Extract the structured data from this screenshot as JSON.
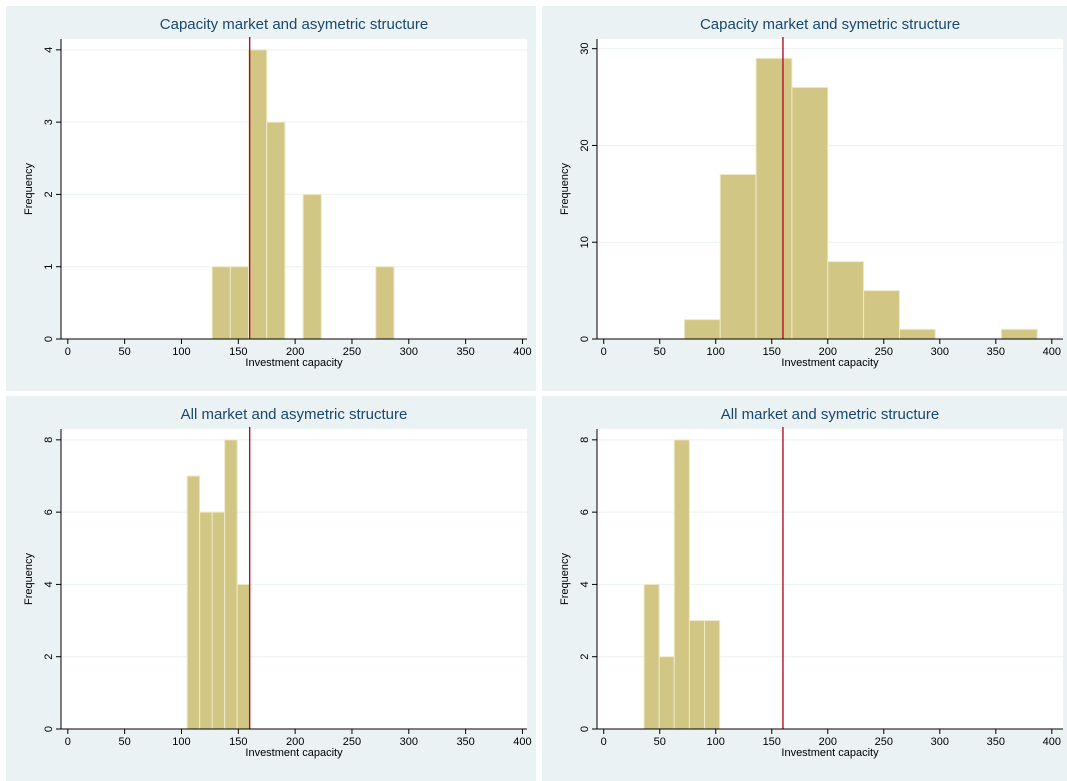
{
  "colors": {
    "panel_bg": "#EAF2F3",
    "plot_bg": "#FFFFFF",
    "grid": "#EAF2F3",
    "bar_fill": "#D1C683",
    "bar_stroke": "#EFEAC9",
    "ref_line": "#B0102A",
    "title": "#1A476F",
    "axis": "#000000"
  },
  "chart_data": [
    {
      "type": "bar",
      "subtype": "histogram",
      "title": "Capacity market and asymetric structure",
      "xlabel": "Investment capacity",
      "ylabel": "Frequency",
      "xlim": [
        -6,
        404
      ],
      "ylim": [
        0,
        4.15
      ],
      "xticks": [
        0,
        50,
        100,
        150,
        200,
        250,
        300,
        350,
        400
      ],
      "yticks": [
        0,
        1,
        2,
        3,
        4
      ],
      "reference_line_x": 160,
      "grid": true,
      "bins": [
        {
          "start": 127,
          "end": 143,
          "value": 1
        },
        {
          "start": 143,
          "end": 159,
          "value": 1
        },
        {
          "start": 159,
          "end": 175,
          "value": 4
        },
        {
          "start": 175,
          "end": 191,
          "value": 3
        },
        {
          "start": 207,
          "end": 223,
          "value": 2
        },
        {
          "start": 271,
          "end": 287,
          "value": 1
        }
      ]
    },
    {
      "type": "bar",
      "subtype": "histogram",
      "title": "Capacity market and symetric structure",
      "xlabel": "Investment capacity",
      "ylabel": "Frequency",
      "xlim": [
        -6,
        410
      ],
      "ylim": [
        0,
        31
      ],
      "xticks": [
        0,
        50,
        100,
        150,
        200,
        250,
        300,
        350,
        400
      ],
      "yticks": [
        0,
        10,
        20,
        30
      ],
      "reference_line_x": 160,
      "grid": true,
      "bins": [
        {
          "start": 72,
          "end": 104,
          "value": 2
        },
        {
          "start": 104,
          "end": 136,
          "value": 17
        },
        {
          "start": 136,
          "end": 168,
          "value": 29
        },
        {
          "start": 168,
          "end": 200,
          "value": 26
        },
        {
          "start": 200,
          "end": 232,
          "value": 8
        },
        {
          "start": 232,
          "end": 264,
          "value": 5
        },
        {
          "start": 264,
          "end": 296,
          "value": 1
        },
        {
          "start": 355,
          "end": 387,
          "value": 1
        }
      ]
    },
    {
      "type": "bar",
      "subtype": "histogram",
      "title": "All market and asymetric structure",
      "xlabel": "Investment capacity",
      "ylabel": "Frequency",
      "xlim": [
        -6,
        404
      ],
      "ylim": [
        0,
        8.3
      ],
      "xticks": [
        0,
        50,
        100,
        150,
        200,
        250,
        300,
        350,
        400
      ],
      "yticks": [
        0,
        2,
        4,
        6,
        8
      ],
      "reference_line_x": 160,
      "grid": true,
      "bins": [
        {
          "start": 105,
          "end": 116,
          "value": 7
        },
        {
          "start": 116,
          "end": 127,
          "value": 6
        },
        {
          "start": 127,
          "end": 138,
          "value": 6
        },
        {
          "start": 138,
          "end": 149,
          "value": 8
        },
        {
          "start": 149,
          "end": 160,
          "value": 4
        }
      ]
    },
    {
      "type": "bar",
      "subtype": "histogram",
      "title": "All market and symetric structure",
      "xlabel": "Investment capacity",
      "ylabel": "Frequency",
      "xlim": [
        -6,
        410
      ],
      "ylim": [
        0,
        8.3
      ],
      "xticks": [
        0,
        50,
        100,
        150,
        200,
        250,
        300,
        350,
        400
      ],
      "yticks": [
        0,
        2,
        4,
        6,
        8
      ],
      "reference_line_x": 160,
      "grid": true,
      "bins": [
        {
          "start": 36,
          "end": 49.5,
          "value": 4
        },
        {
          "start": 49.5,
          "end": 63,
          "value": 2
        },
        {
          "start": 63,
          "end": 76.5,
          "value": 8
        },
        {
          "start": 76.5,
          "end": 90,
          "value": 3
        },
        {
          "start": 90,
          "end": 103.5,
          "value": 3
        }
      ]
    }
  ]
}
